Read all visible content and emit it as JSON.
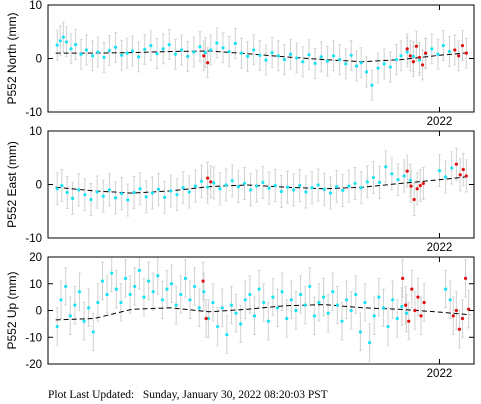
{
  "colors": {
    "errorbar": "#d0d0d0",
    "point": "#19e3f2",
    "recent_point": "#e01010",
    "trend": "#000000",
    "frame": "#000000"
  },
  "chart_data": [
    {
      "type": "scatter",
      "ylabel": "P552 North (mm)",
      "ylim": [
        -10,
        10
      ],
      "yticks": [
        -10,
        0,
        10
      ],
      "xlim": [
        2016.9,
        2022.45
      ],
      "xticks": [
        2022
      ],
      "xticklabels": [
        "2022"
      ],
      "errorbar_mm": 2.8,
      "trend": {
        "x": [
          2017.0,
          2017.5,
          2018.0,
          2018.5,
          2019.0,
          2019.5,
          2020.0,
          2020.5,
          2021.0,
          2021.5,
          2022.0,
          2022.4
        ],
        "y": [
          1.0,
          1.0,
          1.1,
          1.3,
          1.4,
          0.9,
          0.3,
          -0.2,
          -0.6,
          -0.2,
          0.6,
          1.1
        ]
      },
      "series": [
        {
          "x": [
            2017.02,
            2017.06,
            2017.1,
            2017.14,
            2017.2,
            2017.26,
            2017.33,
            2017.4,
            2017.48,
            2017.55,
            2017.63,
            2017.7,
            2017.78,
            2017.86,
            2017.93,
            2018.0,
            2018.08,
            2018.16,
            2018.24,
            2018.32,
            2018.4,
            2018.48,
            2018.56,
            2018.64,
            2018.72,
            2018.8,
            2018.88,
            2018.95,
            2019.02,
            2019.1,
            2019.18,
            2019.26,
            2019.34,
            2019.42,
            2019.5,
            2019.58,
            2019.66,
            2019.74,
            2019.82,
            2019.9,
            2019.98,
            2020.06,
            2020.14,
            2020.22,
            2020.3,
            2020.38,
            2020.46,
            2020.54,
            2020.62,
            2020.7,
            2020.78,
            2020.85,
            2020.92,
            2020.98,
            2021.05,
            2021.12,
            2021.2,
            2021.28,
            2021.36,
            2021.44,
            2021.5,
            2021.58,
            2021.66,
            2021.74,
            2021.82,
            2021.9,
            2021.98,
            2022.05,
            2022.13
          ],
          "y": [
            2.5,
            3.3,
            4.0,
            3.1,
            1.8,
            2.6,
            0.8,
            1.6,
            0.5,
            1.2,
            0.2,
            1.5,
            2.1,
            0.6,
            1.0,
            1.4,
            0.3,
            1.7,
            2.4,
            0.9,
            1.8,
            2.6,
            0.8,
            1.6,
            0.4,
            1.2,
            2.2,
            1.1,
            1.6,
            2.9,
            2.0,
            1.3,
            2.8,
            1.0,
            0.4,
            1.6,
            0.6,
            -0.3,
            1.1,
            0.5,
            -0.2,
            0.8,
            0.1,
            -0.6,
            0.7,
            -0.9,
            0.3,
            -0.5,
            0.5,
            -0.2,
            -1.0,
            0.6,
            -1.4,
            -0.8,
            -2.5,
            -5.0,
            -1.8,
            -1.0,
            -1.6,
            -0.2,
            0.5,
            1.2,
            0.4,
            -0.3,
            0.9,
            1.8,
            0.8,
            2.4,
            1.3
          ]
        },
        {
          "x": [
            2018.93,
            2018.98,
            2021.58,
            2021.62,
            2021.66,
            2021.7,
            2021.74,
            2021.78,
            2021.82,
            2022.2,
            2022.25,
            2022.3,
            2022.35
          ],
          "y": [
            0.5,
            -0.8,
            1.8,
            0.5,
            -0.6,
            2.3,
            0.2,
            -1.2,
            1.0,
            1.6,
            0.5,
            2.4,
            1.0
          ]
        }
      ]
    },
    {
      "type": "scatter",
      "ylabel": "P552 East (mm)",
      "ylim": [
        -10,
        10
      ],
      "yticks": [
        -10,
        0,
        10
      ],
      "xlim": [
        2016.9,
        2022.45
      ],
      "xticks": [
        2022
      ],
      "xticklabels": [
        "2022"
      ],
      "errorbar_mm": 3.0,
      "trend": {
        "x": [
          2017.0,
          2017.5,
          2018.0,
          2018.5,
          2019.0,
          2019.5,
          2020.0,
          2020.5,
          2021.0,
          2021.5,
          2022.0,
          2022.4
        ],
        "y": [
          -0.5,
          -1.2,
          -1.6,
          -1.2,
          -0.4,
          -0.1,
          -0.5,
          -0.8,
          -0.5,
          0.2,
          0.9,
          1.5
        ]
      },
      "series": [
        {
          "x": [
            2017.02,
            2017.08,
            2017.15,
            2017.22,
            2017.3,
            2017.38,
            2017.46,
            2017.54,
            2017.62,
            2017.7,
            2017.78,
            2017.86,
            2017.94,
            2018.02,
            2018.1,
            2018.18,
            2018.26,
            2018.34,
            2018.42,
            2018.5,
            2018.58,
            2018.66,
            2018.74,
            2018.82,
            2018.9,
            2018.98,
            2019.06,
            2019.14,
            2019.22,
            2019.3,
            2019.38,
            2019.46,
            2019.54,
            2019.62,
            2019.7,
            2019.78,
            2019.86,
            2019.94,
            2020.02,
            2020.1,
            2020.18,
            2020.26,
            2020.34,
            2020.42,
            2020.5,
            2020.58,
            2020.66,
            2020.74,
            2020.82,
            2020.9,
            2020.98,
            2021.06,
            2021.14,
            2021.22,
            2021.3,
            2021.38,
            2021.46,
            2021.54,
            2021.62,
            2022.0,
            2022.08,
            2022.16
          ],
          "y": [
            -0.8,
            -0.2,
            -1.5,
            -2.6,
            -1.0,
            -1.9,
            -2.8,
            -1.4,
            -2.2,
            -1.0,
            -2.5,
            -1.7,
            -2.9,
            -1.5,
            -0.8,
            -2.3,
            -1.6,
            -0.9,
            -2.4,
            -1.2,
            -1.9,
            -0.6,
            -1.4,
            -0.3,
            0.6,
            -0.5,
            0.3,
            -0.8,
            -0.1,
            0.7,
            -0.4,
            0.2,
            -1.0,
            -0.3,
            0.4,
            -0.7,
            -0.2,
            -1.3,
            -0.5,
            -1.0,
            -0.2,
            -1.4,
            -0.6,
            -0.1,
            -0.9,
            -1.6,
            -0.4,
            -1.1,
            -0.3,
            0.2,
            -0.6,
            0.5,
            1.3,
            0.4,
            3.3,
            2.0,
            0.9,
            1.6,
            0.8,
            2.6,
            1.4,
            3.1
          ]
        },
        {
          "x": [
            2018.98,
            2019.02,
            2021.58,
            2021.63,
            2021.67,
            2021.71,
            2021.75,
            2021.79,
            2022.22,
            2022.27,
            2022.31,
            2022.35
          ],
          "y": [
            1.2,
            0.5,
            2.5,
            -0.3,
            -2.8,
            -0.8,
            -0.2,
            0.2,
            3.8,
            1.8,
            2.8,
            1.6
          ]
        }
      ]
    },
    {
      "type": "scatter",
      "ylabel": "P552 Up (mm)",
      "ylim": [
        -20,
        20
      ],
      "yticks": [
        -20,
        -10,
        0,
        10,
        20
      ],
      "xlim": [
        2016.9,
        2022.45
      ],
      "xticks": [
        2022
      ],
      "xticklabels": [
        "2022"
      ],
      "errorbar_mm": 7.0,
      "trend": {
        "x": [
          2017.0,
          2017.5,
          2018.0,
          2018.5,
          2019.0,
          2019.5,
          2020.0,
          2020.5,
          2021.0,
          2021.5,
          2022.0,
          2022.4
        ],
        "y": [
          -3.5,
          -3.0,
          0.5,
          1.0,
          -0.5,
          0.5,
          1.8,
          2.2,
          1.0,
          0.4,
          -0.6,
          -1.6
        ]
      },
      "series": [
        {
          "x": [
            2017.02,
            2017.07,
            2017.13,
            2017.19,
            2017.25,
            2017.31,
            2017.37,
            2017.43,
            2017.49,
            2017.55,
            2017.61,
            2017.67,
            2017.73,
            2017.79,
            2017.85,
            2017.91,
            2017.97,
            2018.03,
            2018.09,
            2018.15,
            2018.21,
            2018.27,
            2018.33,
            2018.39,
            2018.45,
            2018.51,
            2018.57,
            2018.63,
            2018.69,
            2018.75,
            2018.81,
            2018.87,
            2018.93,
            2018.99,
            2019.05,
            2019.11,
            2019.17,
            2019.23,
            2019.29,
            2019.35,
            2019.41,
            2019.47,
            2019.53,
            2019.59,
            2019.65,
            2019.71,
            2019.77,
            2019.83,
            2019.89,
            2019.95,
            2020.01,
            2020.07,
            2020.13,
            2020.19,
            2020.25,
            2020.31,
            2020.37,
            2020.43,
            2020.49,
            2020.55,
            2020.61,
            2020.67,
            2020.73,
            2020.79,
            2020.85,
            2020.91,
            2020.97,
            2021.03,
            2021.09,
            2021.15,
            2021.21,
            2021.27,
            2021.33,
            2021.39,
            2021.45,
            2021.51,
            2021.57,
            2022.08,
            2022.14
          ],
          "y": [
            -6.0,
            4.0,
            9.0,
            -2.0,
            2.0,
            7.0,
            -4.0,
            1.0,
            -8.0,
            3.0,
            11.0,
            6.0,
            14.0,
            8.0,
            3.0,
            12.0,
            6.0,
            9.0,
            15.0,
            5.0,
            11.0,
            7.0,
            13.0,
            4.0,
            8.0,
            10.0,
            2.0,
            6.0,
            12.0,
            4.0,
            9.0,
            1.0,
            7.0,
            -3.0,
            3.0,
            -6.0,
            1.0,
            -9.0,
            2.0,
            -1.0,
            -5.0,
            4.0,
            6.0,
            -2.0,
            8.0,
            3.0,
            -4.0,
            5.0,
            1.0,
            7.0,
            -3.0,
            4.0,
            0.0,
            6.0,
            2.0,
            9.0,
            -2.0,
            3.0,
            5.0,
            -1.0,
            7.0,
            2.0,
            -4.0,
            4.0,
            0.0,
            6.0,
            -8.0,
            3.0,
            -12.0,
            -2.0,
            5.0,
            1.0,
            -6.0,
            4.0,
            -3.0,
            1.5,
            -1.0,
            8.0,
            4.0
          ]
        },
        {
          "x": [
            2018.92,
            2018.96,
            2021.52,
            2021.56,
            2021.6,
            2021.64,
            2021.68,
            2021.72,
            2021.76,
            2021.8,
            2022.18,
            2022.22,
            2022.26,
            2022.3,
            2022.34,
            2022.38
          ],
          "y": [
            11.0,
            -3.0,
            12.0,
            2.0,
            -4.0,
            8.0,
            0.0,
            5.0,
            -2.0,
            3.0,
            -2.0,
            0.0,
            -7.0,
            -3.0,
            12.0,
            0.5
          ]
        }
      ]
    }
  ],
  "footer": "Plot Last Updated:   Sunday, January 30, 2022 08:20:03 PST"
}
